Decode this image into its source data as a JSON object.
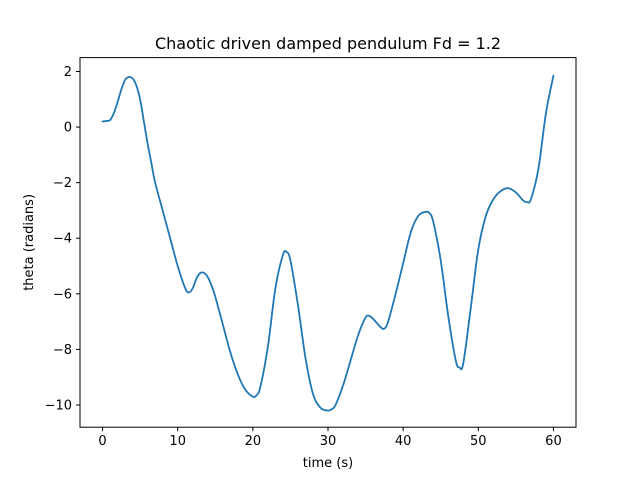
{
  "chart_data": {
    "type": "line",
    "title": "Chaotic driven damped pendulum Fd = 1.2",
    "xlabel": "time (s)",
    "ylabel": "theta (radians)",
    "xlim": [
      -3,
      63
    ],
    "ylim": [
      -10.8,
      2.5
    ],
    "xticks": [
      0,
      10,
      20,
      30,
      40,
      50,
      60
    ],
    "xtick_labels": [
      "0",
      "10",
      "20",
      "30",
      "40",
      "50",
      "60"
    ],
    "yticks": [
      2,
      0,
      -2,
      -4,
      -6,
      -8,
      -10
    ],
    "ytick_labels": [
      "2",
      "0",
      "−2",
      "−4",
      "−6",
      "−8",
      "−10"
    ],
    "grid": false,
    "series": [
      {
        "color": "#1f77b4",
        "x": [
          0,
          0.5,
          1,
          1.5,
          2,
          2.5,
          3,
          3.5,
          4,
          4.5,
          5,
          5.5,
          6,
          6.5,
          7,
          8,
          9,
          10,
          11,
          11.5,
          12,
          12.5,
          13,
          13.5,
          14,
          14.5,
          15,
          16,
          17,
          18,
          19,
          20,
          20.5,
          21,
          22,
          23,
          24,
          24.5,
          25,
          26,
          27,
          28,
          29,
          30,
          30.5,
          31,
          32,
          33,
          34,
          35,
          35.5,
          36,
          37,
          37.5,
          38,
          39,
          40,
          41,
          42,
          43,
          43.5,
          44,
          45,
          46,
          47,
          47.5,
          48,
          49,
          50,
          51,
          52,
          53,
          54,
          55,
          56,
          56.5,
          57,
          58,
          59,
          60
        ],
        "y": [
          0.2,
          0.22,
          0.25,
          0.5,
          0.9,
          1.35,
          1.7,
          1.8,
          1.75,
          1.5,
          1.0,
          0.2,
          -0.6,
          -1.3,
          -2.0,
          -3.0,
          -4.0,
          -5.0,
          -5.8,
          -5.95,
          -5.8,
          -5.45,
          -5.25,
          -5.25,
          -5.4,
          -5.7,
          -6.1,
          -7.1,
          -8.1,
          -8.9,
          -9.45,
          -9.7,
          -9.65,
          -9.35,
          -7.9,
          -5.8,
          -4.6,
          -4.5,
          -4.8,
          -6.4,
          -8.3,
          -9.6,
          -10.1,
          -10.2,
          -10.15,
          -10.0,
          -9.3,
          -8.4,
          -7.5,
          -6.85,
          -6.8,
          -6.9,
          -7.2,
          -7.25,
          -7.0,
          -6.0,
          -4.9,
          -3.8,
          -3.2,
          -3.05,
          -3.1,
          -3.4,
          -4.8,
          -6.8,
          -8.4,
          -8.65,
          -8.5,
          -6.5,
          -4.4,
          -3.2,
          -2.6,
          -2.3,
          -2.2,
          -2.35,
          -2.65,
          -2.7,
          -2.6,
          -1.5,
          0.5,
          1.85
        ]
      }
    ]
  }
}
